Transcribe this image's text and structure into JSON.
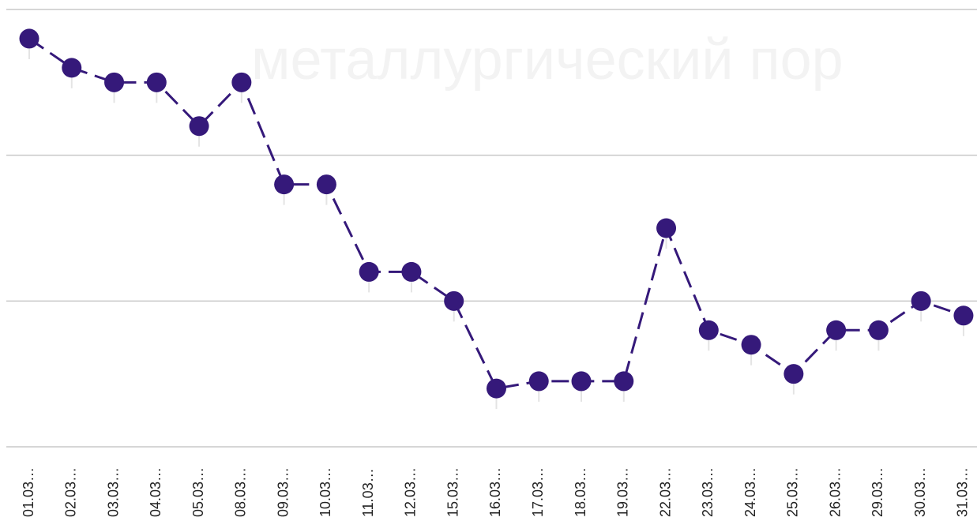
{
  "chart_data": {
    "type": "line",
    "watermark": "металлургический пор",
    "categories": [
      "01.03…",
      "02.03…",
      "03.03…",
      "04.03…",
      "05.03…",
      "08.03…",
      "09.03…",
      "10.03…",
      "11.03…",
      "12.03…",
      "15.03…",
      "16.03…",
      "17.03…",
      "18.03…",
      "19.03…",
      "22.03…",
      "23.03…",
      "24.03…",
      "25.03…",
      "26.03…",
      "29.03…",
      "30.03…",
      "31.03…"
    ],
    "series": [
      {
        "color": "#35197a",
        "values": [
          2.8,
          2.6,
          2.5,
          2.5,
          2.2,
          2.5,
          1.8,
          1.8,
          1.2,
          1.2,
          1.0,
          0.4,
          0.45,
          0.45,
          0.45,
          1.5,
          0.8,
          0.7,
          0.5,
          0.8,
          0.8,
          1.0,
          0.9
        ]
      }
    ],
    "ylim": [
      0,
      3
    ],
    "yticks": [
      0,
      1,
      2,
      3
    ],
    "grid": true
  }
}
